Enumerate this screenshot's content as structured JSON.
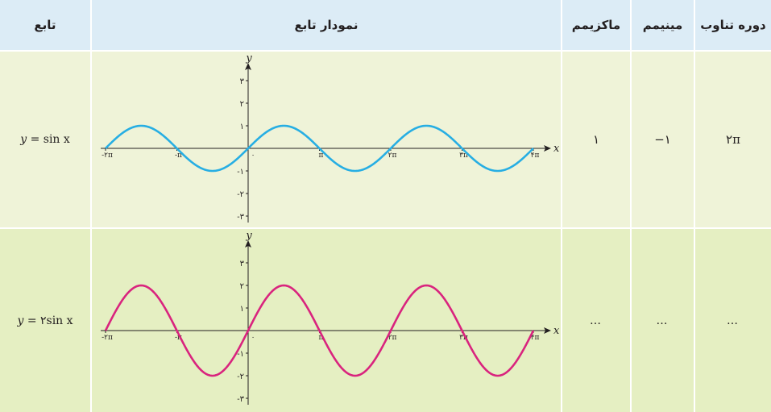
{
  "header": {
    "col_function": "تابع",
    "col_graph": "نمودار تابع",
    "col_max": "ماکزیمم",
    "col_min": "مینیمم",
    "col_period": "دوره تناوب"
  },
  "rows": [
    {
      "function_lhs": "y",
      "function_rhs": "= sin x",
      "maximum": "۱",
      "minimum": "−۱",
      "period": "۲π",
      "curve_color": "#27aee3"
    },
    {
      "function_lhs": "y",
      "function_rhs": "= ۲sin x",
      "maximum": "…",
      "minimum": "…",
      "period": "…",
      "curve_color": "#d9247e"
    }
  ],
  "axes": {
    "x_label": "x",
    "y_label": "y",
    "x_ticks": [
      "-۲π",
      "-π",
      "۰",
      "π",
      "۲π",
      "۳π",
      "۴π"
    ],
    "y_ticks": [
      "-۳",
      "-۲",
      "-۱",
      "۱",
      "۲",
      "۳"
    ]
  },
  "chart_data": [
    {
      "type": "line",
      "series": [
        {
          "name": "y = sin x",
          "function": "sin(x)",
          "amplitude": 1
        }
      ],
      "x_domain": [
        "-2π",
        "4π"
      ],
      "ylim": [
        -3,
        3
      ],
      "color": "#27aee3"
    },
    {
      "type": "line",
      "series": [
        {
          "name": "y = 2sin x",
          "function": "2sin(x)",
          "amplitude": 2
        }
      ],
      "x_domain": [
        "-2π",
        "4π"
      ],
      "ylim": [
        -3,
        3
      ],
      "color": "#d9247e"
    }
  ]
}
